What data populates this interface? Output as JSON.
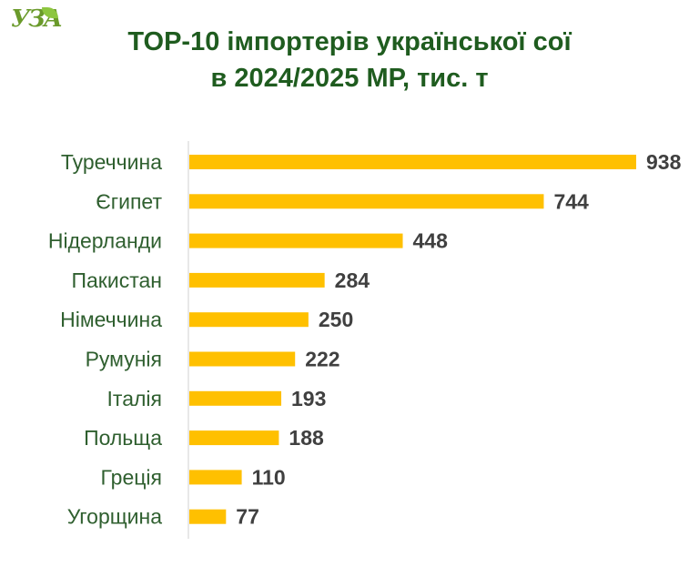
{
  "logo": {
    "text": "УЗА"
  },
  "chart_data": {
    "type": "bar",
    "orientation": "horizontal",
    "title": "TOP-10 імпортерів української сої в 2024/2025 МР, тис. т",
    "title_lines": [
      "TOP-10 імпортерів української сої",
      "в 2024/2025 МР, тис. т"
    ],
    "categories": [
      "Туреччина",
      "Єгипет",
      "Нідерланди",
      "Пакистан",
      "Німеччина",
      "Румунія",
      "Італія",
      "Польща",
      "Греція",
      "Угорщина"
    ],
    "values": [
      938,
      744,
      448,
      284,
      250,
      222,
      193,
      188,
      110,
      77
    ],
    "xlim": [
      0,
      938
    ],
    "grid": false,
    "legend": "none",
    "bar_color": "#ffc000",
    "title_color": "#1f5c1f",
    "label_color": "#2f5f2f",
    "value_color": "#404040"
  }
}
